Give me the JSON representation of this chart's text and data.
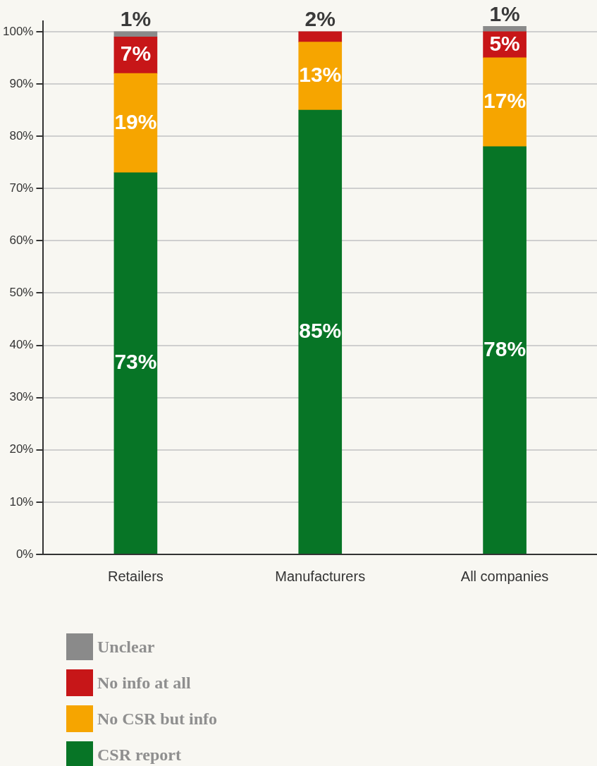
{
  "chart_data": {
    "type": "bar",
    "stacked": true,
    "categories": [
      "Retailers",
      "Manufacturers",
      "All companies"
    ],
    "series": [
      {
        "name": "CSR report",
        "color": "#077526",
        "values": [
          73,
          85,
          78
        ],
        "value_labels": [
          "73%",
          "85%",
          "78%"
        ]
      },
      {
        "name": "No CSR but info",
        "color": "#f6a500",
        "values": [
          19,
          13,
          17
        ],
        "value_labels": [
          "19%",
          "13%",
          "17%"
        ]
      },
      {
        "name": "No info at all",
        "color": "#c71618",
        "values": [
          7,
          2,
          5
        ],
        "value_labels": [
          "7%",
          "2%",
          "5%"
        ]
      },
      {
        "name": "Unclear",
        "color": "#8a8a8a",
        "values": [
          1,
          null,
          1
        ],
        "value_labels": [
          "1%",
          null,
          "1%"
        ]
      }
    ],
    "ylim": [
      0,
      102
    ],
    "yticks": [
      {
        "value": 0,
        "label": "0%"
      },
      {
        "value": 10,
        "label": "10%"
      },
      {
        "value": 20,
        "label": "20%"
      },
      {
        "value": 30,
        "label": "30%"
      },
      {
        "value": 40,
        "label": "40%"
      },
      {
        "value": 50,
        "label": "50%"
      },
      {
        "value": 60,
        "label": "60%"
      },
      {
        "value": 70,
        "label": "70%"
      },
      {
        "value": 80,
        "label": "80%"
      },
      {
        "value": 90,
        "label": "90%"
      },
      {
        "value": 100,
        "label": "100%"
      }
    ],
    "grid": "y",
    "legend": "bottom left"
  }
}
